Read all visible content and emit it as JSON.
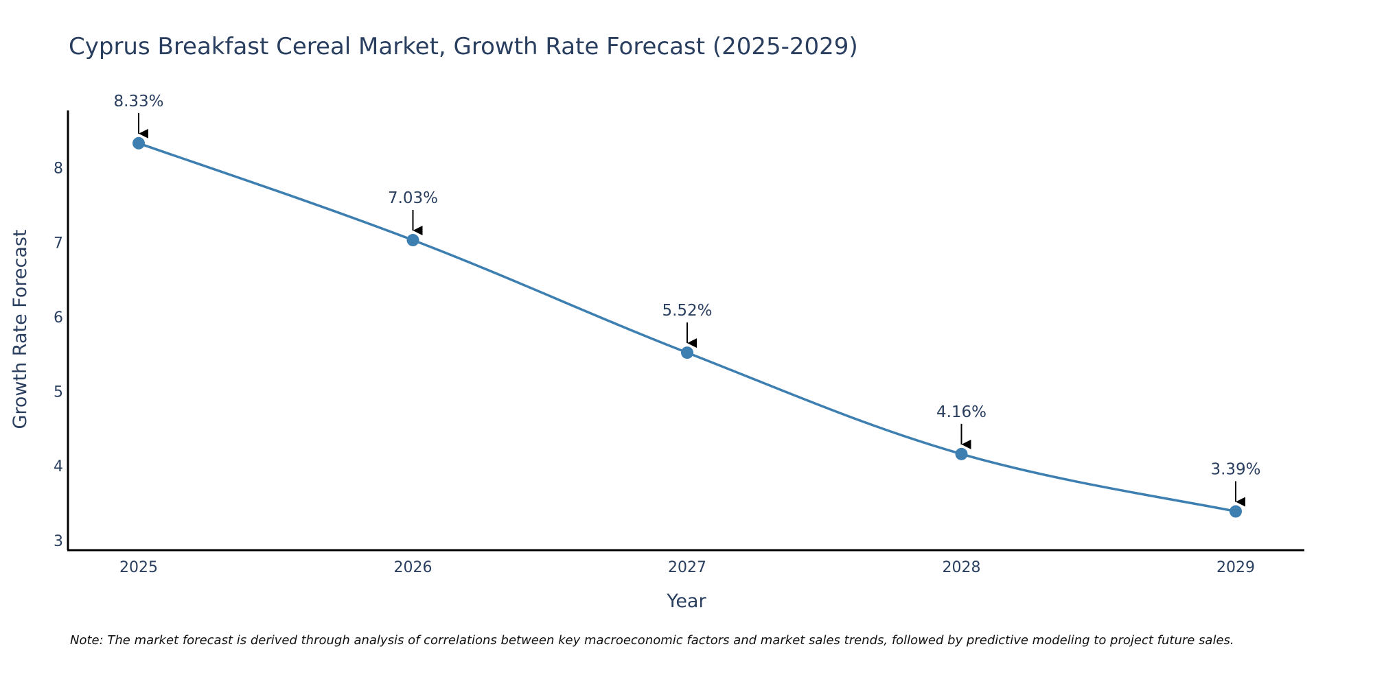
{
  "chart_data": {
    "type": "line",
    "title": "Cyprus Breakfast Cereal Market, Growth Rate Forecast (2025-2029)",
    "xlabel": "Year",
    "ylabel": "Growth Rate Forecast",
    "categories": [
      "2025",
      "2026",
      "2027",
      "2028",
      "2029"
    ],
    "values": [
      8.33,
      7.03,
      5.52,
      4.16,
      3.39
    ],
    "data_labels": [
      "8.33%",
      "7.03%",
      "5.52%",
      "4.16%",
      "3.39%"
    ],
    "yticks": [
      3,
      4,
      5,
      6,
      7,
      8
    ],
    "ytick_labels": [
      "3",
      "4",
      "5",
      "6",
      "7",
      "8"
    ],
    "ylim": [
      2.87,
      8.77
    ],
    "grid": false,
    "legend": "none",
    "line_color": "#3d7fb0",
    "marker_color": "#3d7fb0",
    "arrow_color": "#000000",
    "note": "Note: The market forecast is derived through analysis of correlations between key macroeconomic factors and market sales trends, followed by predictive modeling to project future sales."
  }
}
